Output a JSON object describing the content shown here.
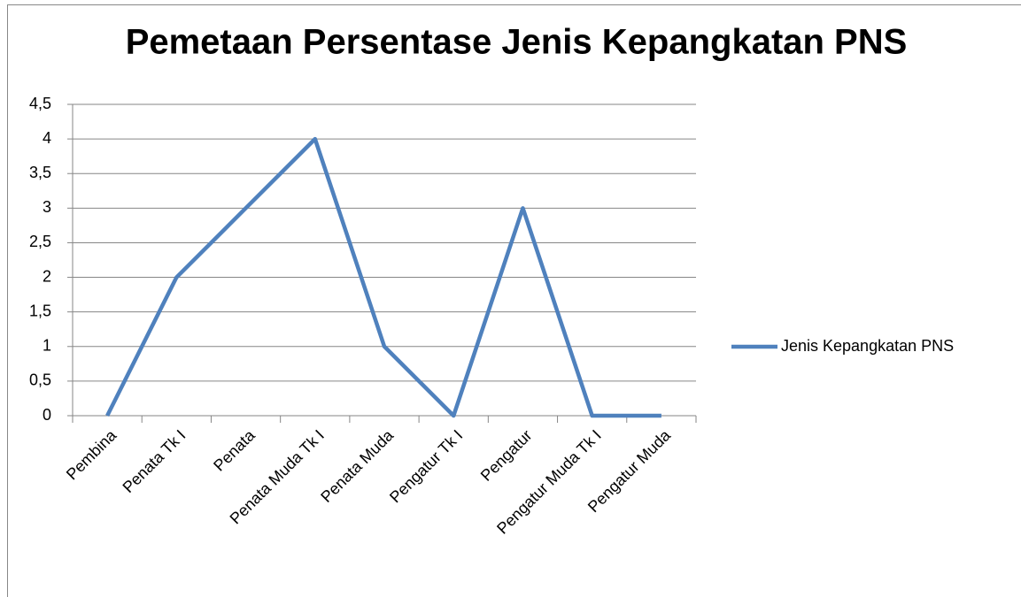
{
  "chart_data": {
    "type": "line",
    "title": "Pemetaan Persentase Jenis Kepangkatan PNS",
    "categories": [
      "Pembina",
      "Penata Tk I",
      "Penata",
      "Penata Muda Tk I",
      "Penata Muda",
      "Pengatur Tk I",
      "Pengatur",
      "Pengatur Muda Tk I",
      "Pengatur Muda"
    ],
    "series": [
      {
        "name": "Jenis Kepangkatan PNS",
        "color": "#4f81bd",
        "values": [
          0,
          2,
          3,
          4,
          1,
          0,
          3,
          0,
          0
        ]
      }
    ],
    "ylim": [
      0,
      4.5
    ],
    "yticks": [
      0,
      {
        "value": 0.5,
        "label": "0,5"
      },
      1,
      {
        "value": 1.5,
        "label": "1,5"
      },
      2,
      {
        "value": 2.5,
        "label": "2,5"
      },
      3,
      {
        "value": 3.5,
        "label": "3,5"
      },
      4,
      {
        "value": 4.5,
        "label": "4,5"
      }
    ],
    "grid": true,
    "legend": "right"
  }
}
